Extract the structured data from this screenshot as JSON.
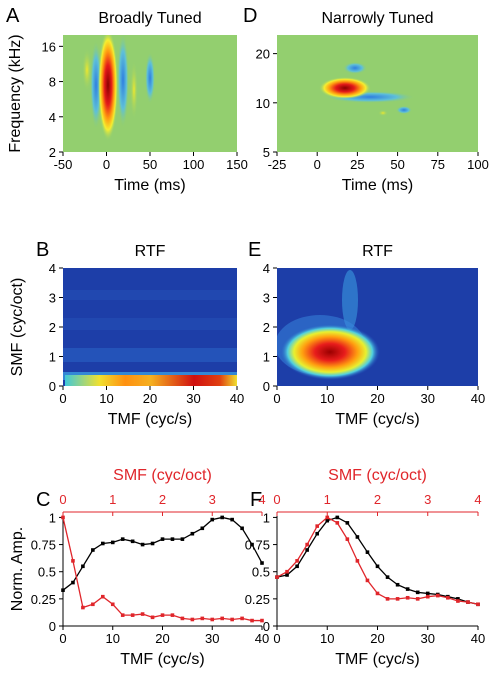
{
  "chart_data": [
    {
      "type": "heatmap",
      "panel_label": "A",
      "title": "Broadly Tuned",
      "xlabel": "Time (ms)",
      "ylabel": "Frequency (kHz)",
      "xlim": [
        -50,
        150
      ],
      "xticks": [
        -50,
        0,
        50,
        100,
        150
      ],
      "ylim": [
        2,
        20
      ],
      "yticks": [
        2,
        4,
        8,
        16
      ],
      "log_y": true
    },
    {
      "type": "heatmap",
      "panel_label": "D",
      "title": "Narrowly Tuned",
      "xlabel": "Time (ms)",
      "xlim": [
        -25,
        100
      ],
      "xticks": [
        -25,
        0,
        25,
        50,
        75,
        100
      ],
      "ylim": [
        5,
        26
      ],
      "yticks": [
        5,
        10,
        20
      ],
      "log_y": true
    },
    {
      "type": "heatmap",
      "panel_label": "B",
      "title": "RTF",
      "xlabel": "TMF (cyc/s)",
      "ylabel": "SMF (cyc/oct)",
      "xlim": [
        0,
        40
      ],
      "xticks": [
        0,
        10,
        20,
        30,
        40
      ],
      "ylim": [
        0,
        4
      ],
      "yticks": [
        0,
        1,
        2,
        3,
        4
      ]
    },
    {
      "type": "heatmap",
      "panel_label": "E",
      "title": "RTF",
      "xlabel": "TMF (cyc/s)",
      "xlim": [
        0,
        40
      ],
      "xticks": [
        0,
        10,
        20,
        30,
        40
      ],
      "ylim": [
        0,
        4
      ],
      "yticks": [
        0,
        1,
        2,
        3,
        4
      ]
    },
    {
      "type": "line",
      "panel_label": "C",
      "xlabel": "TMF (cyc/s)",
      "ylabel": "Norm. Amp.",
      "x2label": "SMF (cyc/oct)",
      "x2color": "#e0262b",
      "xlim": [
        0,
        40
      ],
      "xticks": [
        0,
        10,
        20,
        30,
        40
      ],
      "x2lim": [
        0,
        4
      ],
      "x2ticks": [
        0,
        1,
        2,
        3,
        4
      ],
      "ylim": [
        0,
        1.05
      ],
      "yticks": [
        0,
        0.25,
        0.5,
        0.75,
        1
      ],
      "series": [
        {
          "color": "#000000",
          "x": [
            0,
            2,
            4,
            6,
            8,
            10,
            12,
            14,
            16,
            18,
            20,
            22,
            24,
            26,
            28,
            30,
            32,
            34,
            36,
            38,
            40
          ],
          "values": [
            0.33,
            0.4,
            0.55,
            0.7,
            0.76,
            0.77,
            0.8,
            0.78,
            0.75,
            0.76,
            0.8,
            0.8,
            0.8,
            0.85,
            0.9,
            0.98,
            1.0,
            0.98,
            0.9,
            0.75,
            0.58
          ]
        },
        {
          "color": "#e0262b",
          "axis": "x2",
          "x": [
            0,
            0.2,
            0.4,
            0.6,
            0.8,
            1.0,
            1.2,
            1.4,
            1.6,
            1.8,
            2.0,
            2.2,
            2.4,
            2.6,
            2.8,
            3.0,
            3.2,
            3.4,
            3.6,
            3.8,
            4.0
          ],
          "values": [
            1.0,
            0.6,
            0.17,
            0.2,
            0.27,
            0.2,
            0.1,
            0.1,
            0.11,
            0.08,
            0.1,
            0.1,
            0.07,
            0.06,
            0.07,
            0.06,
            0.07,
            0.06,
            0.07,
            0.05,
            0.05
          ]
        }
      ]
    },
    {
      "type": "line",
      "panel_label": "F",
      "xlabel": "TMF (cyc/s)",
      "x2label": "SMF (cyc/oct)",
      "x2color": "#e0262b",
      "xlim": [
        0,
        40
      ],
      "xticks": [
        0,
        10,
        20,
        30,
        40
      ],
      "x2lim": [
        0,
        4
      ],
      "x2ticks": [
        0,
        1,
        2,
        3,
        4
      ],
      "ylim": [
        0,
        1.05
      ],
      "yticks": [
        0,
        0.25,
        0.5,
        0.75,
        1
      ],
      "series": [
        {
          "color": "#000000",
          "x": [
            0,
            2,
            4,
            6,
            8,
            10,
            12,
            14,
            16,
            18,
            20,
            22,
            24,
            26,
            28,
            30,
            32,
            34,
            36,
            38,
            40
          ],
          "values": [
            0.45,
            0.47,
            0.55,
            0.7,
            0.85,
            0.97,
            1.0,
            0.95,
            0.82,
            0.68,
            0.55,
            0.45,
            0.38,
            0.34,
            0.31,
            0.3,
            0.29,
            0.27,
            0.25,
            0.22,
            0.2
          ]
        },
        {
          "color": "#e0262b",
          "axis": "x2",
          "x": [
            0,
            0.2,
            0.4,
            0.6,
            0.8,
            1.0,
            1.2,
            1.4,
            1.6,
            1.8,
            2.0,
            2.2,
            2.4,
            2.6,
            2.8,
            3.0,
            3.2,
            3.4,
            3.6,
            3.8,
            4.0
          ],
          "values": [
            0.45,
            0.5,
            0.6,
            0.75,
            0.92,
            1.0,
            0.95,
            0.8,
            0.6,
            0.42,
            0.3,
            0.25,
            0.25,
            0.26,
            0.25,
            0.27,
            0.28,
            0.26,
            0.23,
            0.22,
            0.2
          ]
        }
      ]
    }
  ]
}
